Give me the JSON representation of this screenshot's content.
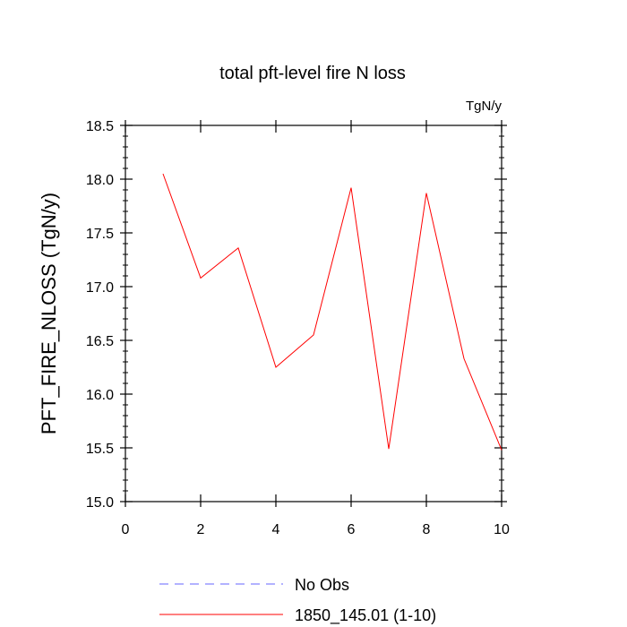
{
  "chart_data": {
    "type": "line",
    "title": "total pft-level fire N loss",
    "units_label": "TgN/y",
    "ylabel": "PFT_FIRE_NLOSS  (TgN/y)",
    "xlabel": "",
    "xlim": [
      0,
      10
    ],
    "ylim": [
      15.0,
      18.5
    ],
    "x_ticks": [
      0,
      2,
      4,
      6,
      8,
      10
    ],
    "x_tick_labels": [
      "0",
      "2",
      "4",
      "6",
      "8",
      "10"
    ],
    "y_ticks": [
      15.0,
      15.5,
      16.0,
      16.5,
      17.0,
      17.5,
      18.0,
      18.5
    ],
    "y_tick_labels": [
      "15.0",
      "15.5",
      "16.0",
      "16.5",
      "17.0",
      "17.5",
      "18.0",
      "18.5"
    ],
    "grid": false,
    "legend_position": "bottom",
    "series": [
      {
        "name": "No Obs",
        "color": "#6666ff",
        "dash": "dashed",
        "x": [],
        "values": []
      },
      {
        "name": "1850_145.01 (1-10)",
        "color": "#ff0000",
        "dash": "solid",
        "x": [
          1,
          2,
          3,
          4,
          5,
          6,
          7,
          8,
          9,
          10
        ],
        "values": [
          18.05,
          17.08,
          17.36,
          16.25,
          16.55,
          17.92,
          15.49,
          17.87,
          16.33,
          15.48
        ]
      }
    ]
  }
}
